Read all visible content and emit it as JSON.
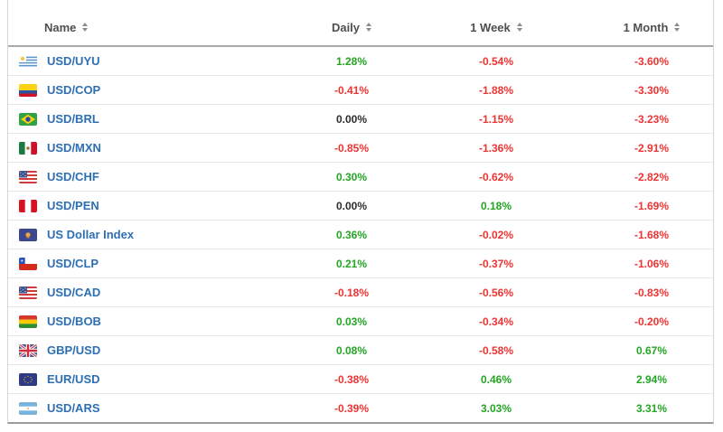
{
  "colors": {
    "positive": "#24a524",
    "negative": "#ee3333",
    "neutral": "#2d2d2d",
    "name_link": "#2d6fb4",
    "header_text": "#4f4f4f"
  },
  "table": {
    "columns": [
      {
        "label": "Name",
        "sortable": true
      },
      {
        "label": "Daily",
        "sortable": true
      },
      {
        "label": "1 Week",
        "sortable": true
      },
      {
        "label": "1 Month",
        "sortable": true
      }
    ],
    "rows": [
      {
        "name": "USD/UYU",
        "flag": "uruguay",
        "daily": "1.28%",
        "week": "-0.54%",
        "month": "-3.60%"
      },
      {
        "name": "USD/COP",
        "flag": "colombia",
        "daily": "-0.41%",
        "week": "-1.88%",
        "month": "-3.30%"
      },
      {
        "name": "USD/BRL",
        "flag": "brazil",
        "daily": "0.00%",
        "week": "-1.15%",
        "month": "-3.23%"
      },
      {
        "name": "USD/MXN",
        "flag": "mexico",
        "daily": "-0.85%",
        "week": "-1.36%",
        "month": "-2.91%"
      },
      {
        "name": "USD/CHF",
        "flag": "usa",
        "daily": "0.30%",
        "week": "-0.62%",
        "month": "-2.82%"
      },
      {
        "name": "USD/PEN",
        "flag": "peru",
        "daily": "0.00%",
        "week": "0.18%",
        "month": "-1.69%"
      },
      {
        "name": "US Dollar Index",
        "flag": "us-dollar-index",
        "daily": "0.36%",
        "week": "-0.02%",
        "month": "-1.68%"
      },
      {
        "name": "USD/CLP",
        "flag": "chile",
        "daily": "0.21%",
        "week": "-0.37%",
        "month": "-1.06%"
      },
      {
        "name": "USD/CAD",
        "flag": "usa",
        "daily": "-0.18%",
        "week": "-0.56%",
        "month": "-0.83%"
      },
      {
        "name": "USD/BOB",
        "flag": "bolivia",
        "daily": "0.03%",
        "week": "-0.34%",
        "month": "-0.20%"
      },
      {
        "name": "GBP/USD",
        "flag": "united-kingdom",
        "daily": "0.08%",
        "week": "-0.58%",
        "month": "0.67%"
      },
      {
        "name": "EUR/USD",
        "flag": "european-union",
        "daily": "-0.38%",
        "week": "0.46%",
        "month": "2.94%"
      },
      {
        "name": "USD/ARS",
        "flag": "argentina",
        "daily": "-0.39%",
        "week": "3.03%",
        "month": "3.31%"
      }
    ]
  }
}
